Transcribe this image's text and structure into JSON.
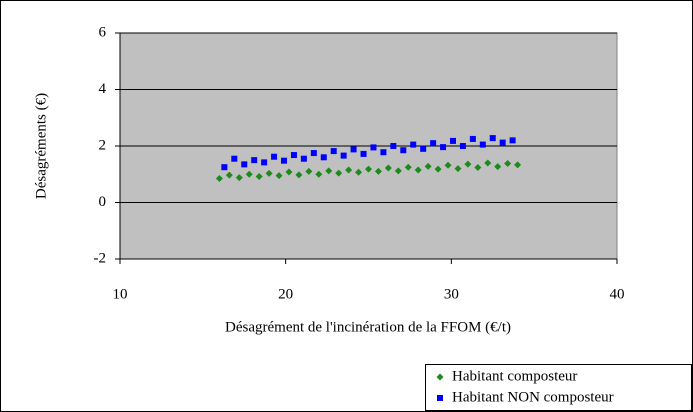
{
  "chart_data": {
    "type": "scatter",
    "x_label": "Désagrément de l'incinération de la FFOM (€/t)",
    "y_label": "Désagréments (€)",
    "xlim": [
      10,
      40
    ],
    "xticks": [
      10,
      20,
      30,
      40
    ],
    "ylim": [
      -2,
      6
    ],
    "yticks": [
      -2,
      0,
      2,
      4,
      6
    ],
    "grid": true,
    "legend": "bottom-right",
    "series": [
      {
        "name": "Habitant composteur",
        "color": "#1e8a1e",
        "marker": "diamond",
        "x": [
          16.0,
          16.6,
          17.2,
          17.8,
          18.4,
          19.0,
          19.6,
          20.2,
          20.8,
          21.4,
          22.0,
          22.6,
          23.2,
          23.8,
          24.4,
          25.0,
          25.6,
          26.2,
          26.8,
          27.4,
          28.0,
          28.6,
          29.2,
          29.8,
          30.4,
          31.0,
          31.6,
          32.2,
          32.8,
          33.4,
          34.0
        ],
        "values": [
          0.85,
          0.97,
          0.88,
          1.0,
          0.92,
          1.03,
          0.95,
          1.08,
          0.98,
          1.1,
          1.0,
          1.12,
          1.04,
          1.15,
          1.07,
          1.18,
          1.1,
          1.22,
          1.12,
          1.25,
          1.15,
          1.28,
          1.18,
          1.32,
          1.2,
          1.36,
          1.24,
          1.4,
          1.27,
          1.38,
          1.33
        ]
      },
      {
        "name": "Habitant NON composteur",
        "color": "#0000ff",
        "marker": "square",
        "x": [
          16.3,
          16.9,
          17.5,
          18.1,
          18.7,
          19.3,
          19.9,
          20.5,
          21.1,
          21.7,
          22.3,
          22.9,
          23.5,
          24.1,
          24.7,
          25.3,
          25.9,
          26.5,
          27.1,
          27.7,
          28.3,
          28.9,
          29.5,
          30.1,
          30.7,
          31.3,
          31.9,
          32.5,
          33.1,
          33.7
        ],
        "values": [
          1.25,
          1.55,
          1.35,
          1.5,
          1.42,
          1.62,
          1.48,
          1.68,
          1.55,
          1.75,
          1.6,
          1.82,
          1.66,
          1.88,
          1.72,
          1.95,
          1.78,
          2.0,
          1.85,
          2.05,
          1.9,
          2.1,
          1.96,
          2.18,
          2.0,
          2.25,
          2.05,
          2.28,
          2.12,
          2.2
        ]
      }
    ]
  }
}
